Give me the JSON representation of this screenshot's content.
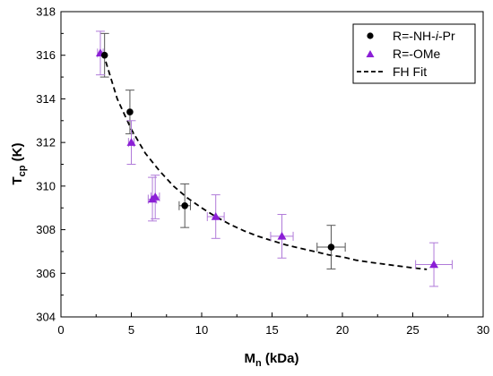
{
  "chart_data": {
    "type": "scatter",
    "xlabel": {
      "main": "M",
      "sub": "n",
      "rest": " (kDa)"
    },
    "ylabel": {
      "main": "T",
      "sub": "cp",
      "rest": " (K)"
    },
    "xlim": [
      0,
      30
    ],
    "ylim": [
      304,
      318
    ],
    "x_ticks": [
      "0",
      "5",
      "10",
      "15",
      "20",
      "25",
      "30"
    ],
    "y_ticks": [
      "304",
      "306",
      "308",
      "310",
      "312",
      "314",
      "316",
      "318"
    ],
    "grid": false,
    "legend_position": "top-right",
    "colors": {
      "black": "#000000",
      "purple": "#8b1fd6",
      "purple_err": "#b07ad9",
      "black_err": "#555555"
    },
    "series": [
      {
        "name": "R=-NH-i-Pr",
        "legend": {
          "prefix": "R=-NH-",
          "italic": "i",
          "suffix": "-Pr"
        },
        "marker": "circle",
        "points": [
          {
            "x": 3.1,
            "y": 316.0,
            "yerr": 1.0,
            "xerr": 0
          },
          {
            "x": 4.9,
            "y": 313.4,
            "yerr": 1.0,
            "xerr": 0
          },
          {
            "x": 8.8,
            "y": 309.1,
            "yerr": 1.0,
            "xerr": 0.4
          },
          {
            "x": 19.2,
            "y": 307.2,
            "yerr": 1.0,
            "xerr": 1.0
          }
        ]
      },
      {
        "name": "R=-OMe",
        "marker": "triangle",
        "points": [
          {
            "x": 2.8,
            "y": 316.1,
            "yerr": 1.0,
            "xerr": 0.2
          },
          {
            "x": 5.0,
            "y": 312.0,
            "yerr": 1.0,
            "xerr": 0.2
          },
          {
            "x": 6.5,
            "y": 309.4,
            "yerr": 1.0,
            "xerr": 0.3
          },
          {
            "x": 6.7,
            "y": 309.5,
            "yerr": 1.0,
            "xerr": 0.3
          },
          {
            "x": 11.0,
            "y": 308.6,
            "yerr": 1.0,
            "xerr": 0.6
          },
          {
            "x": 15.7,
            "y": 307.7,
            "yerr": 1.0,
            "xerr": 0.8
          },
          {
            "x": 26.5,
            "y": 306.4,
            "yerr": 1.0,
            "xerr": 1.3
          }
        ]
      },
      {
        "name": "FH Fit",
        "type": "line",
        "style": "dashed",
        "x": [
          3.0,
          4.0,
          5.0,
          6.0,
          7.0,
          8.0,
          9.0,
          10.0,
          11.0,
          12.0,
          13.0,
          14.0,
          15.0,
          16.0,
          17.0,
          18.0,
          19.0,
          20.0,
          21.0,
          22.0,
          23.0,
          24.0,
          25.0,
          26.0
        ],
        "y": [
          316.1,
          314.0,
          312.6,
          311.5,
          310.7,
          310.0,
          309.45,
          309.0,
          308.6,
          308.25,
          307.95,
          307.7,
          307.5,
          307.3,
          307.15,
          307.0,
          306.85,
          306.75,
          306.6,
          306.5,
          306.42,
          306.33,
          306.25,
          306.18
        ]
      }
    ]
  }
}
